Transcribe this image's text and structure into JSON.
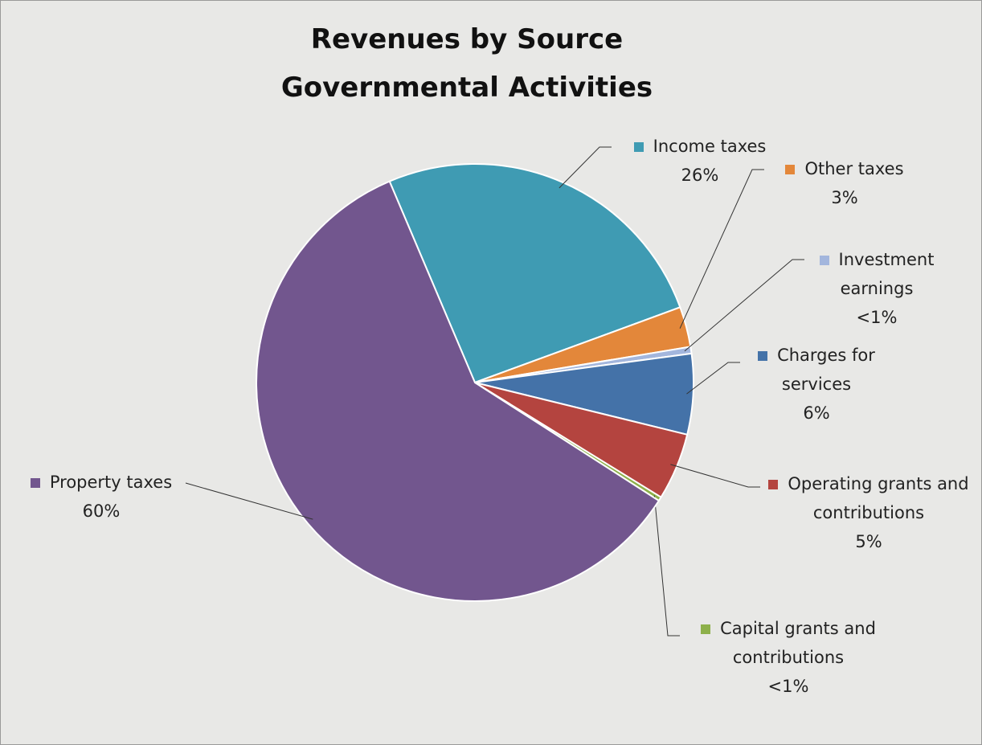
{
  "chart_data": {
    "type": "pie",
    "title": "Revenues by Source",
    "subtitle": "Governmental Activities",
    "categories": [
      "Income taxes",
      "Other taxes",
      "Investment earnings",
      "Charges for services",
      "Operating grants and contributions",
      "Capital grants and contributions",
      "Property taxes"
    ],
    "values": [
      26,
      3,
      0.5,
      6,
      5,
      0.3,
      60
    ],
    "value_labels": [
      "26%",
      "3%",
      "<1%",
      "6%",
      "5%",
      "<1%",
      "60%"
    ],
    "colors": [
      "#3f9bb3",
      "#e3873a",
      "#a3b6dd",
      "#4472a8",
      "#b4443f",
      "#8db04a",
      "#72568e"
    ]
  }
}
